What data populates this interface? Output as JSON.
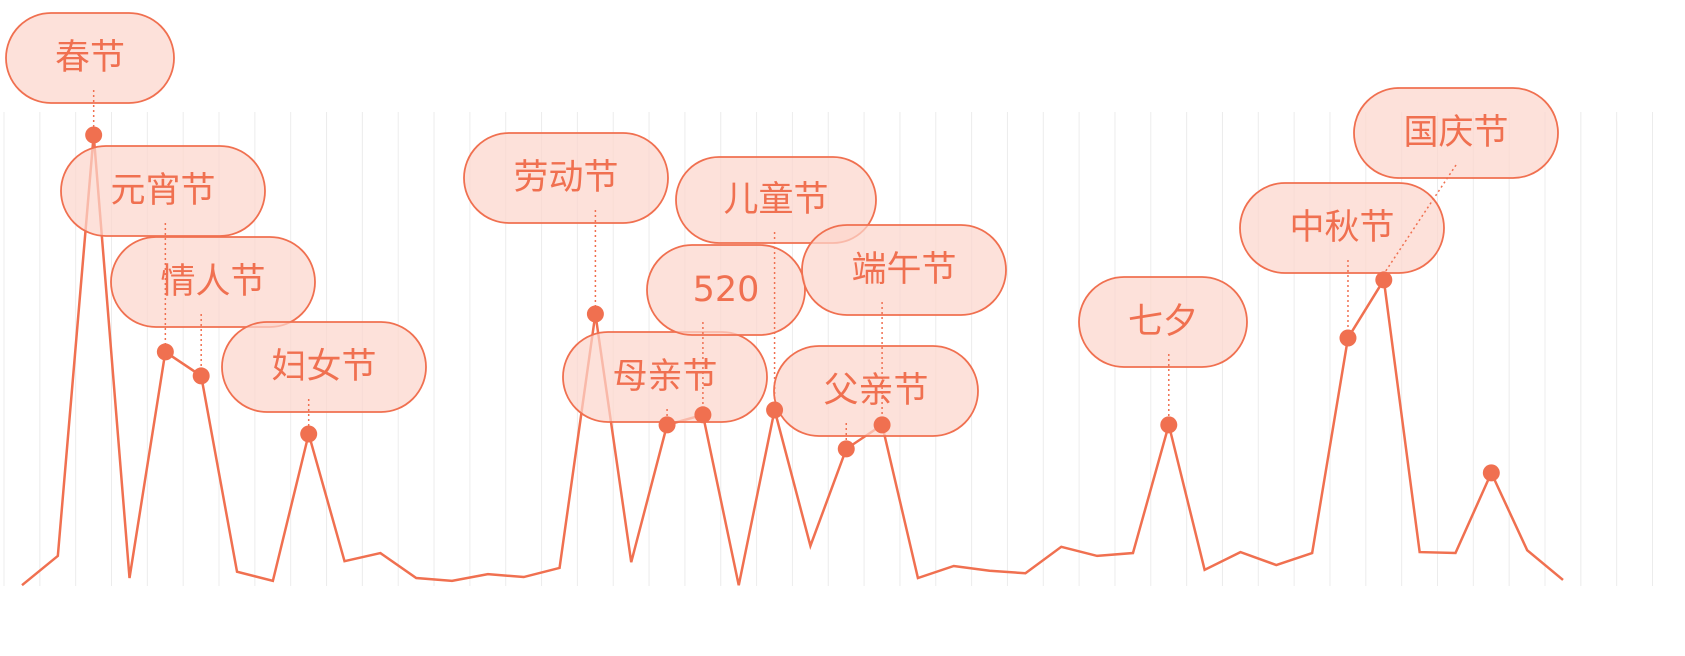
{
  "chart_data": {
    "type": "line",
    "color": "#f07050",
    "ylim": [
      0,
      100
    ],
    "values": [
      1.0,
      7.1,
      94.8,
      2.5,
      49.6,
      44.6,
      3.8,
      1.9,
      32.5,
      6.0,
      7.7,
      2.5,
      1.9,
      3.3,
      2.7,
      4.6,
      57.5,
      5.8,
      34.4,
      36.5,
      1.0,
      37.5,
      9.2,
      29.4,
      34.4,
      2.5,
      5.0,
      4.0,
      3.5,
      9.0,
      7.1,
      7.7,
      34.4,
      4.2,
      7.9,
      5.2,
      7.7,
      52.5,
      64.6,
      7.9,
      7.7,
      24.4,
      8.3,
      2.1
    ],
    "markers": [
      2,
      4,
      5,
      8,
      16,
      18,
      19,
      21,
      23,
      24,
      32,
      37,
      38,
      41
    ],
    "annotations": [
      {
        "index": 2,
        "text": "春节"
      },
      {
        "index": 4,
        "text": "元宵节"
      },
      {
        "index": 5,
        "text": "情人节"
      },
      {
        "index": 8,
        "text": "妇女节"
      },
      {
        "index": 16,
        "text": "劳动节"
      },
      {
        "index": 18,
        "text": "母亲节"
      },
      {
        "index": 19,
        "text": "520"
      },
      {
        "index": 21,
        "text": "儿童节"
      },
      {
        "index": 23,
        "text": "父亲节"
      },
      {
        "index": 24,
        "text": "端午节"
      },
      {
        "index": 32,
        "text": "七夕"
      },
      {
        "index": 37,
        "text": "中秋节"
      },
      {
        "index": 38,
        "text": "国庆节"
      }
    ]
  }
}
